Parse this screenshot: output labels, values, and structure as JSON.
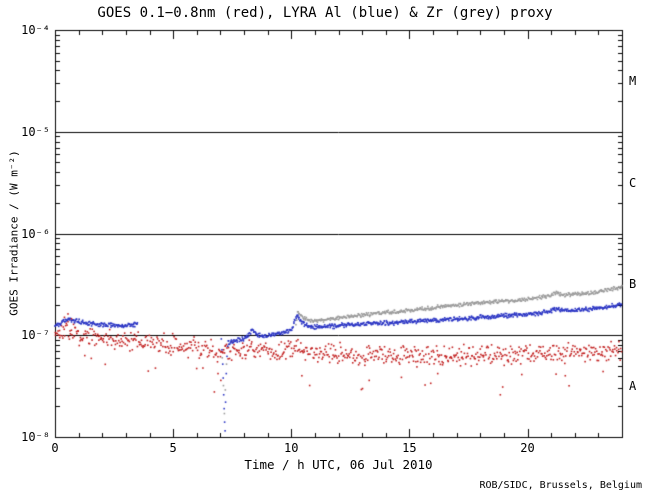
{
  "chart_data": {
    "type": "scatter",
    "title": "GOES 0.1−0.8nm (red), LYRA Al (blue) & Zr (grey) proxy",
    "xlabel": "Time / h UTC, 06 Jul 2010",
    "ylabel": "GOES Irradiance / (W m⁻²)",
    "footer": "ROB/SIDC, Brussels, Belgium",
    "xlim": [
      0,
      24
    ],
    "ylim": [
      1e-08,
      0.0001
    ],
    "ylog": true,
    "grid": false,
    "legend": "in-title",
    "xticks": {
      "major": [
        0,
        5,
        10,
        15,
        20
      ],
      "minor_step": 1
    },
    "yticks": [
      {
        "value": 1e-08,
        "label": "10⁻⁸"
      },
      {
        "value": 1e-07,
        "label": "10⁻⁷"
      },
      {
        "value": 1e-06,
        "label": "10⁻⁶"
      },
      {
        "value": 1e-05,
        "label": "10⁻⁵"
      },
      {
        "value": 0.0001,
        "label": "10⁻⁴"
      }
    ],
    "hlines": [
      1e-07,
      1e-06,
      1e-05
    ],
    "flare_classes": [
      {
        "label": "M",
        "value": 3.16e-05
      },
      {
        "label": "C",
        "value": 3.16e-06
      },
      {
        "label": "B",
        "value": 3.16e-07
      },
      {
        "label": "A",
        "value": 3.16e-08
      }
    ],
    "series": [
      {
        "name": "GOES 0.1-0.8nm",
        "color": "#c22020",
        "noise": 0.16,
        "out_prob": 0.02,
        "step": 0.03,
        "segments": [
          {
            "trend": [
              [
                0,
                1.02e-07
              ],
              [
                0.3,
                1.08e-07
              ],
              [
                0.6,
                1.12e-07
              ],
              [
                0.9,
                1.05e-07
              ],
              [
                1.2,
                1e-07
              ],
              [
                1.5,
                9.8e-08
              ],
              [
                2,
                9.5e-08
              ],
              [
                2.5,
                9.2e-08
              ],
              [
                3,
                9e-08
              ],
              [
                3.5,
                8.8e-08
              ],
              [
                4,
                8.6e-08
              ],
              [
                4.5,
                8.3e-08
              ],
              [
                5,
                8e-08
              ],
              [
                5.5,
                7.8e-08
              ],
              [
                6,
                7.5e-08
              ],
              [
                6.5,
                7.3e-08
              ],
              [
                7,
                7e-08
              ],
              [
                7.5,
                7e-08
              ],
              [
                8,
                7.2e-08
              ],
              [
                8.3,
                7.8e-08
              ],
              [
                8.6,
                7.3e-08
              ],
              [
                9,
                7e-08
              ],
              [
                9.5,
                6.8e-08
              ],
              [
                10,
                7e-08
              ],
              [
                10.3,
                7.8e-08
              ],
              [
                10.6,
                7e-08
              ],
              [
                11,
                6.8e-08
              ],
              [
                12,
                6.6e-08
              ],
              [
                13,
                6.4e-08
              ],
              [
                14,
                6.5e-08
              ],
              [
                15,
                6.3e-08
              ],
              [
                16,
                6.2e-08
              ],
              [
                17,
                6.4e-08
              ],
              [
                18,
                6.3e-08
              ],
              [
                19,
                6.4e-08
              ],
              [
                20,
                6.5e-08
              ],
              [
                21,
                6.6e-08
              ],
              [
                22,
                6.7e-08
              ],
              [
                23,
                6.8e-08
              ],
              [
                24,
                7e-08
              ]
            ]
          }
        ]
      },
      {
        "name": "LYRA Zr proxy",
        "color": "#9a9a9a",
        "noise": 0.03,
        "out_prob": 0,
        "step": 0.025,
        "segments": [
          {
            "trend": [
              [
                10.2,
                1.3e-07
              ],
              [
                10.28,
                1.72e-07
              ],
              [
                10.45,
                1.5e-07
              ],
              [
                10.8,
                1.4e-07
              ],
              [
                11,
                1.38e-07
              ],
              [
                11.5,
                1.42e-07
              ],
              [
                12,
                1.48e-07
              ],
              [
                12.5,
                1.53e-07
              ],
              [
                13,
                1.58e-07
              ],
              [
                13.5,
                1.62e-07
              ],
              [
                14,
                1.68e-07
              ],
              [
                14.5,
                1.7e-07
              ],
              [
                15,
                1.75e-07
              ],
              [
                15.5,
                1.8e-07
              ],
              [
                16,
                1.87e-07
              ],
              [
                16.5,
                1.92e-07
              ],
              [
                17,
                1.98e-07
              ],
              [
                17.5,
                2.02e-07
              ],
              [
                18,
                2.08e-07
              ],
              [
                18.5,
                2.12e-07
              ],
              [
                19,
                2.15e-07
              ],
              [
                19.5,
                2.2e-07
              ],
              [
                20,
                2.28e-07
              ],
              [
                20.5,
                2.35e-07
              ],
              [
                21,
                2.45e-07
              ],
              [
                21.2,
                2.62e-07
              ],
              [
                21.5,
                2.5e-07
              ],
              [
                22,
                2.52e-07
              ],
              [
                22.5,
                2.58e-07
              ],
              [
                23,
                2.68e-07
              ],
              [
                23.5,
                2.8e-07
              ],
              [
                24,
                3e-07
              ]
            ]
          }
        ]
      },
      {
        "name": "LYRA Al proxy",
        "color": "#2b35c4",
        "noise": 0.035,
        "out_prob": 0,
        "step": 0.022,
        "segments": [
          {
            "trend": [
              [
                0,
                1.2e-07
              ],
              [
                0.3,
                1.35e-07
              ],
              [
                0.6,
                1.42e-07
              ],
              [
                0.9,
                1.38e-07
              ],
              [
                1.2,
                1.33e-07
              ],
              [
                1.5,
                1.3e-07
              ],
              [
                1.8,
                1.28e-07
              ],
              [
                2.1,
                1.26e-07
              ],
              [
                2.4,
                1.25e-07
              ],
              [
                2.7,
                1.24e-07
              ],
              [
                3.0,
                1.25e-07
              ],
              [
                3.3,
                1.27e-07
              ],
              [
                3.5,
                1.3e-07
              ]
            ]
          },
          {
            "trend": [
              [
                7.35,
                8.5e-08
              ],
              [
                7.6,
                8.8e-08
              ],
              [
                8.0,
                9.2e-08
              ],
              [
                8.2,
                1e-07
              ],
              [
                8.35,
                1.12e-07
              ],
              [
                8.5,
                1.02e-07
              ],
              [
                8.8,
                9.8e-08
              ],
              [
                9.2,
                1.02e-07
              ],
              [
                9.6,
                1.05e-07
              ],
              [
                10.0,
                1.12e-07
              ],
              [
                10.25,
                1.58e-07
              ],
              [
                10.45,
                1.35e-07
              ],
              [
                10.7,
                1.22e-07
              ],
              [
                11,
                1.2e-07
              ],
              [
                11.5,
                1.22e-07
              ],
              [
                12,
                1.24e-07
              ],
              [
                12.5,
                1.27e-07
              ],
              [
                13,
                1.3e-07
              ],
              [
                13.5,
                1.31e-07
              ],
              [
                14,
                1.33e-07
              ],
              [
                14.5,
                1.32e-07
              ],
              [
                15,
                1.35e-07
              ],
              [
                15.5,
                1.38e-07
              ],
              [
                16,
                1.4e-07
              ],
              [
                16.5,
                1.42e-07
              ],
              [
                17,
                1.45e-07
              ],
              [
                17.5,
                1.47e-07
              ],
              [
                18,
                1.5e-07
              ],
              [
                18.5,
                1.52e-07
              ],
              [
                19,
                1.55e-07
              ],
              [
                19.5,
                1.58e-07
              ],
              [
                20,
                1.62e-07
              ],
              [
                20.5,
                1.65e-07
              ],
              [
                21,
                1.72e-07
              ],
              [
                21.2,
                1.82e-07
              ],
              [
                21.5,
                1.75e-07
              ],
              [
                22,
                1.76e-07
              ],
              [
                22.5,
                1.8e-07
              ],
              [
                23,
                1.86e-07
              ],
              [
                23.5,
                1.92e-07
              ],
              [
                24,
                2.02e-07
              ]
            ]
          }
        ]
      }
    ],
    "outliers": [
      {
        "name": "goes-scatter-outliers",
        "color": "#c22020",
        "points": [
          [
            0.4,
            1.5e-07
          ],
          [
            0.55,
            1.62e-07
          ],
          [
            0.7,
            1.45e-07
          ],
          [
            6.9,
            4.2e-08
          ],
          [
            7.02,
            3.6e-08
          ],
          [
            10.45,
            4e-08
          ],
          [
            13.3,
            3.6e-08
          ],
          [
            16.2,
            4.2e-08
          ],
          [
            18.85,
            2.6e-08
          ],
          [
            18.95,
            3.1e-08
          ],
          [
            21.6,
            4e-08
          ],
          [
            23.2,
            4.4e-08
          ]
        ]
      },
      {
        "name": "lyra-al-calibration-dip",
        "color": "#2b35c4",
        "points": [
          [
            7.04,
            9.2e-08
          ],
          [
            7.07,
            7.2e-08
          ],
          [
            7.1,
            5.2e-08
          ],
          [
            7.12,
            3.8e-08
          ],
          [
            7.14,
            2.6e-08
          ],
          [
            7.16,
            1.9e-08
          ],
          [
            7.18,
            1.4e-08
          ],
          [
            7.2,
            1.15e-08
          ],
          [
            7.22,
            2.2e-08
          ],
          [
            7.25,
            4.2e-08
          ],
          [
            7.28,
            6.2e-08
          ],
          [
            7.31,
            7.8e-08
          ],
          [
            7.34,
            8.8e-08
          ]
        ]
      },
      {
        "name": "lyra-zr-calibration-dip",
        "color": "#9a9a9a",
        "points": [
          [
            7.08,
            6e-08
          ],
          [
            7.13,
            3.2e-08
          ],
          [
            7.17,
            1.7e-08
          ],
          [
            7.21,
            2.9e-08
          ],
          [
            7.26,
            5.2e-08
          ]
        ]
      }
    ]
  }
}
